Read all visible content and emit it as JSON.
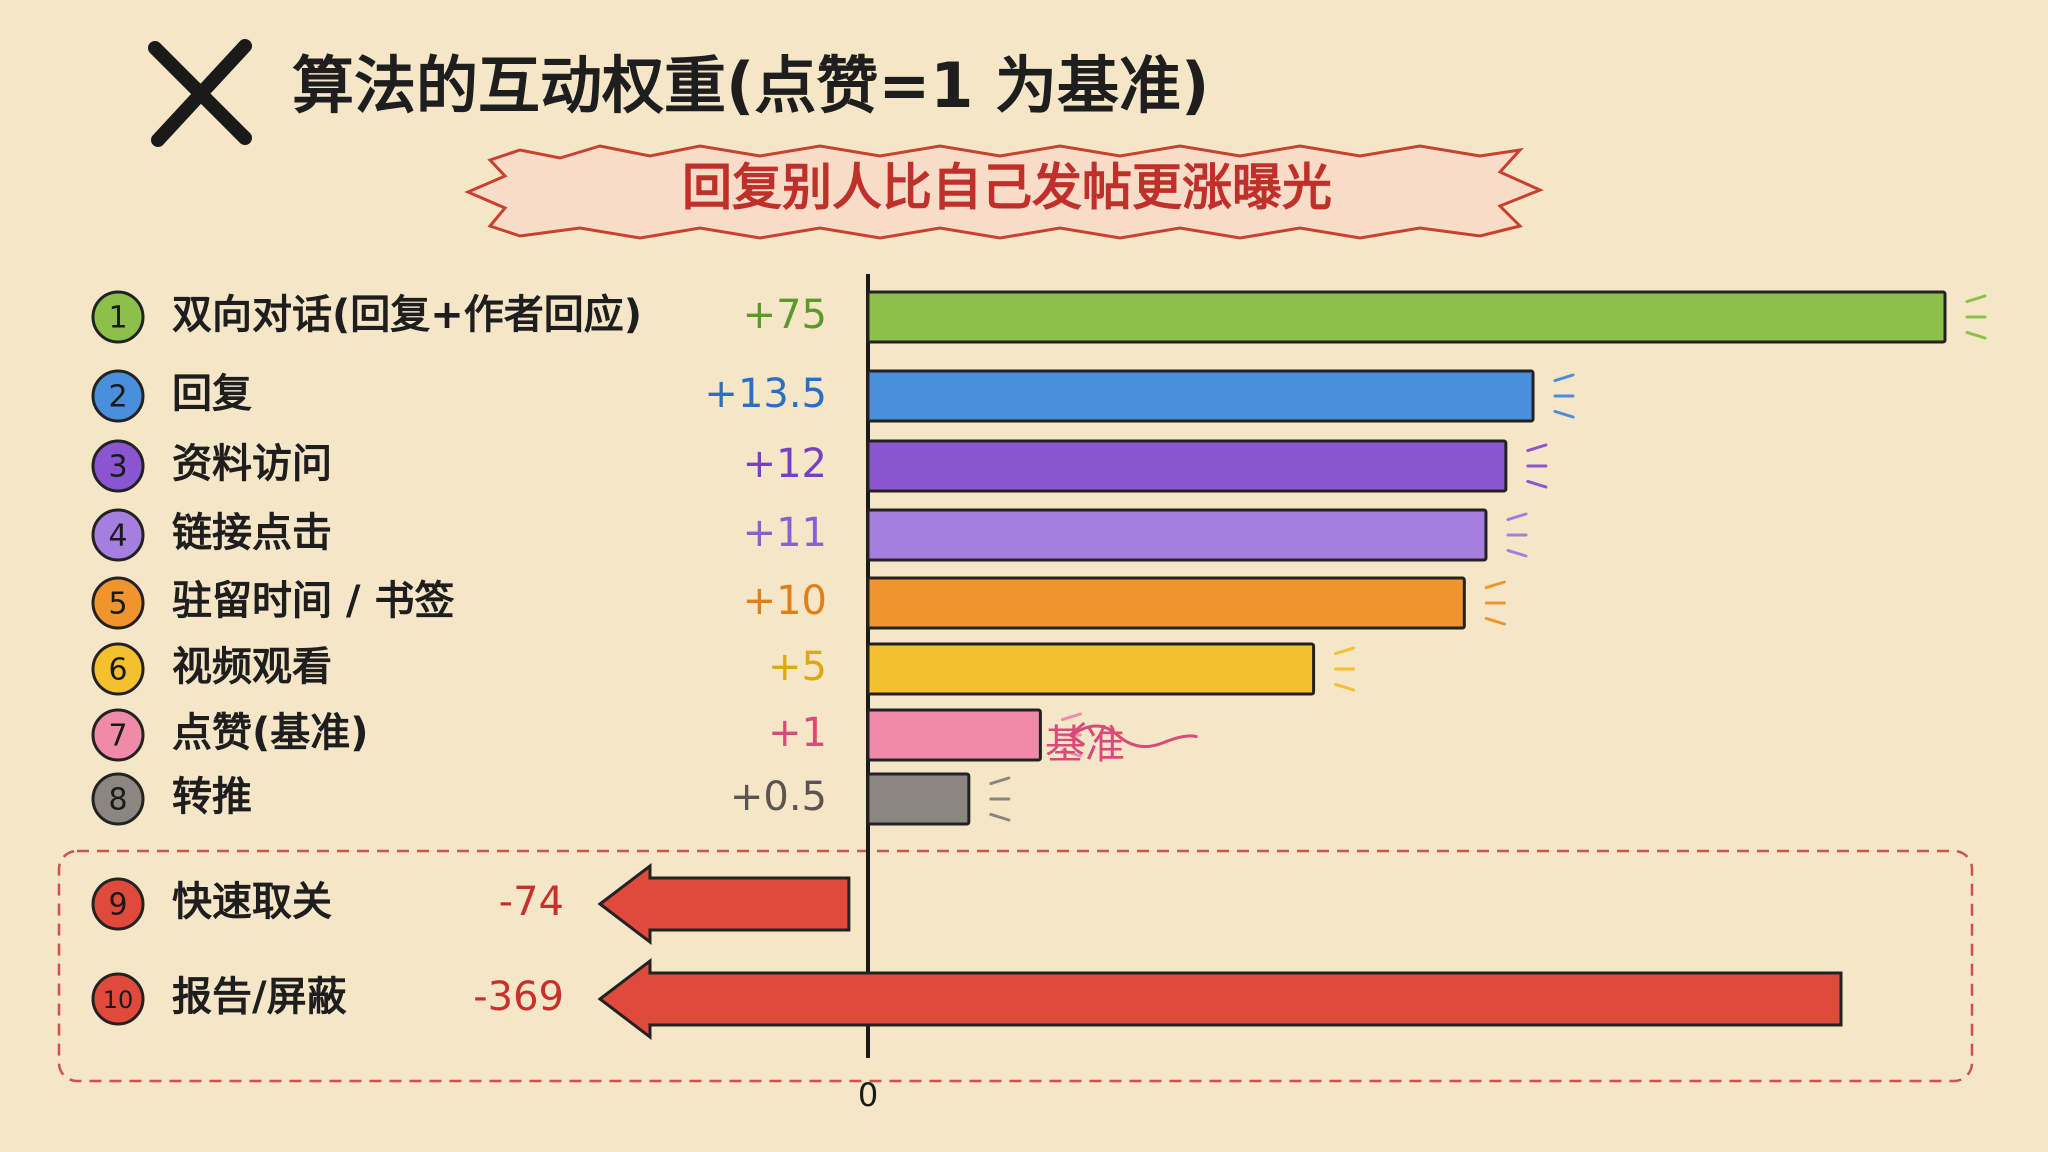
{
  "chart_data": {
    "type": "bar",
    "title": "算法的互动权重(点赞=1 为基准)",
    "subtitle": "回复别人比自己发帖更涨曝光",
    "markers": [
      "1",
      "2",
      "3",
      "4",
      "5",
      "6",
      "7",
      "8",
      "9",
      "10"
    ],
    "categories": [
      "双向对话(回复+作者回应)",
      "回复",
      "资料访问",
      "链接点击",
      "驻留时间 / 书签",
      "视频观看",
      "点赞(基准)",
      "转推",
      "快速取关",
      "报告/屏蔽"
    ],
    "values": [
      75,
      13.5,
      12,
      11,
      10,
      5,
      1,
      0.5,
      -74,
      -369
    ],
    "value_labels": [
      "+75",
      "+13.5",
      "+12",
      "+11",
      "+10",
      "+5",
      "+1",
      "+0.5",
      "-74",
      "-369"
    ],
    "colors": [
      "#8cc04a",
      "#4a8fdc",
      "#8a55cf",
      "#a57ee0",
      "#f0952e",
      "#f4c02e",
      "#ef8aa8",
      "#8c8680",
      "#e04a3a",
      "#e04a3a"
    ],
    "label_colors": [
      "#5b9a26",
      "#2a6fc2",
      "#7640c0",
      "#8a5fd0",
      "#e07f18",
      "#e0a810",
      "#d84a7a",
      "#5a5550",
      "#c8302a",
      "#c8302a"
    ],
    "x_scale": "symlog",
    "xticks": [
      0
    ],
    "annotation": "基准"
  }
}
